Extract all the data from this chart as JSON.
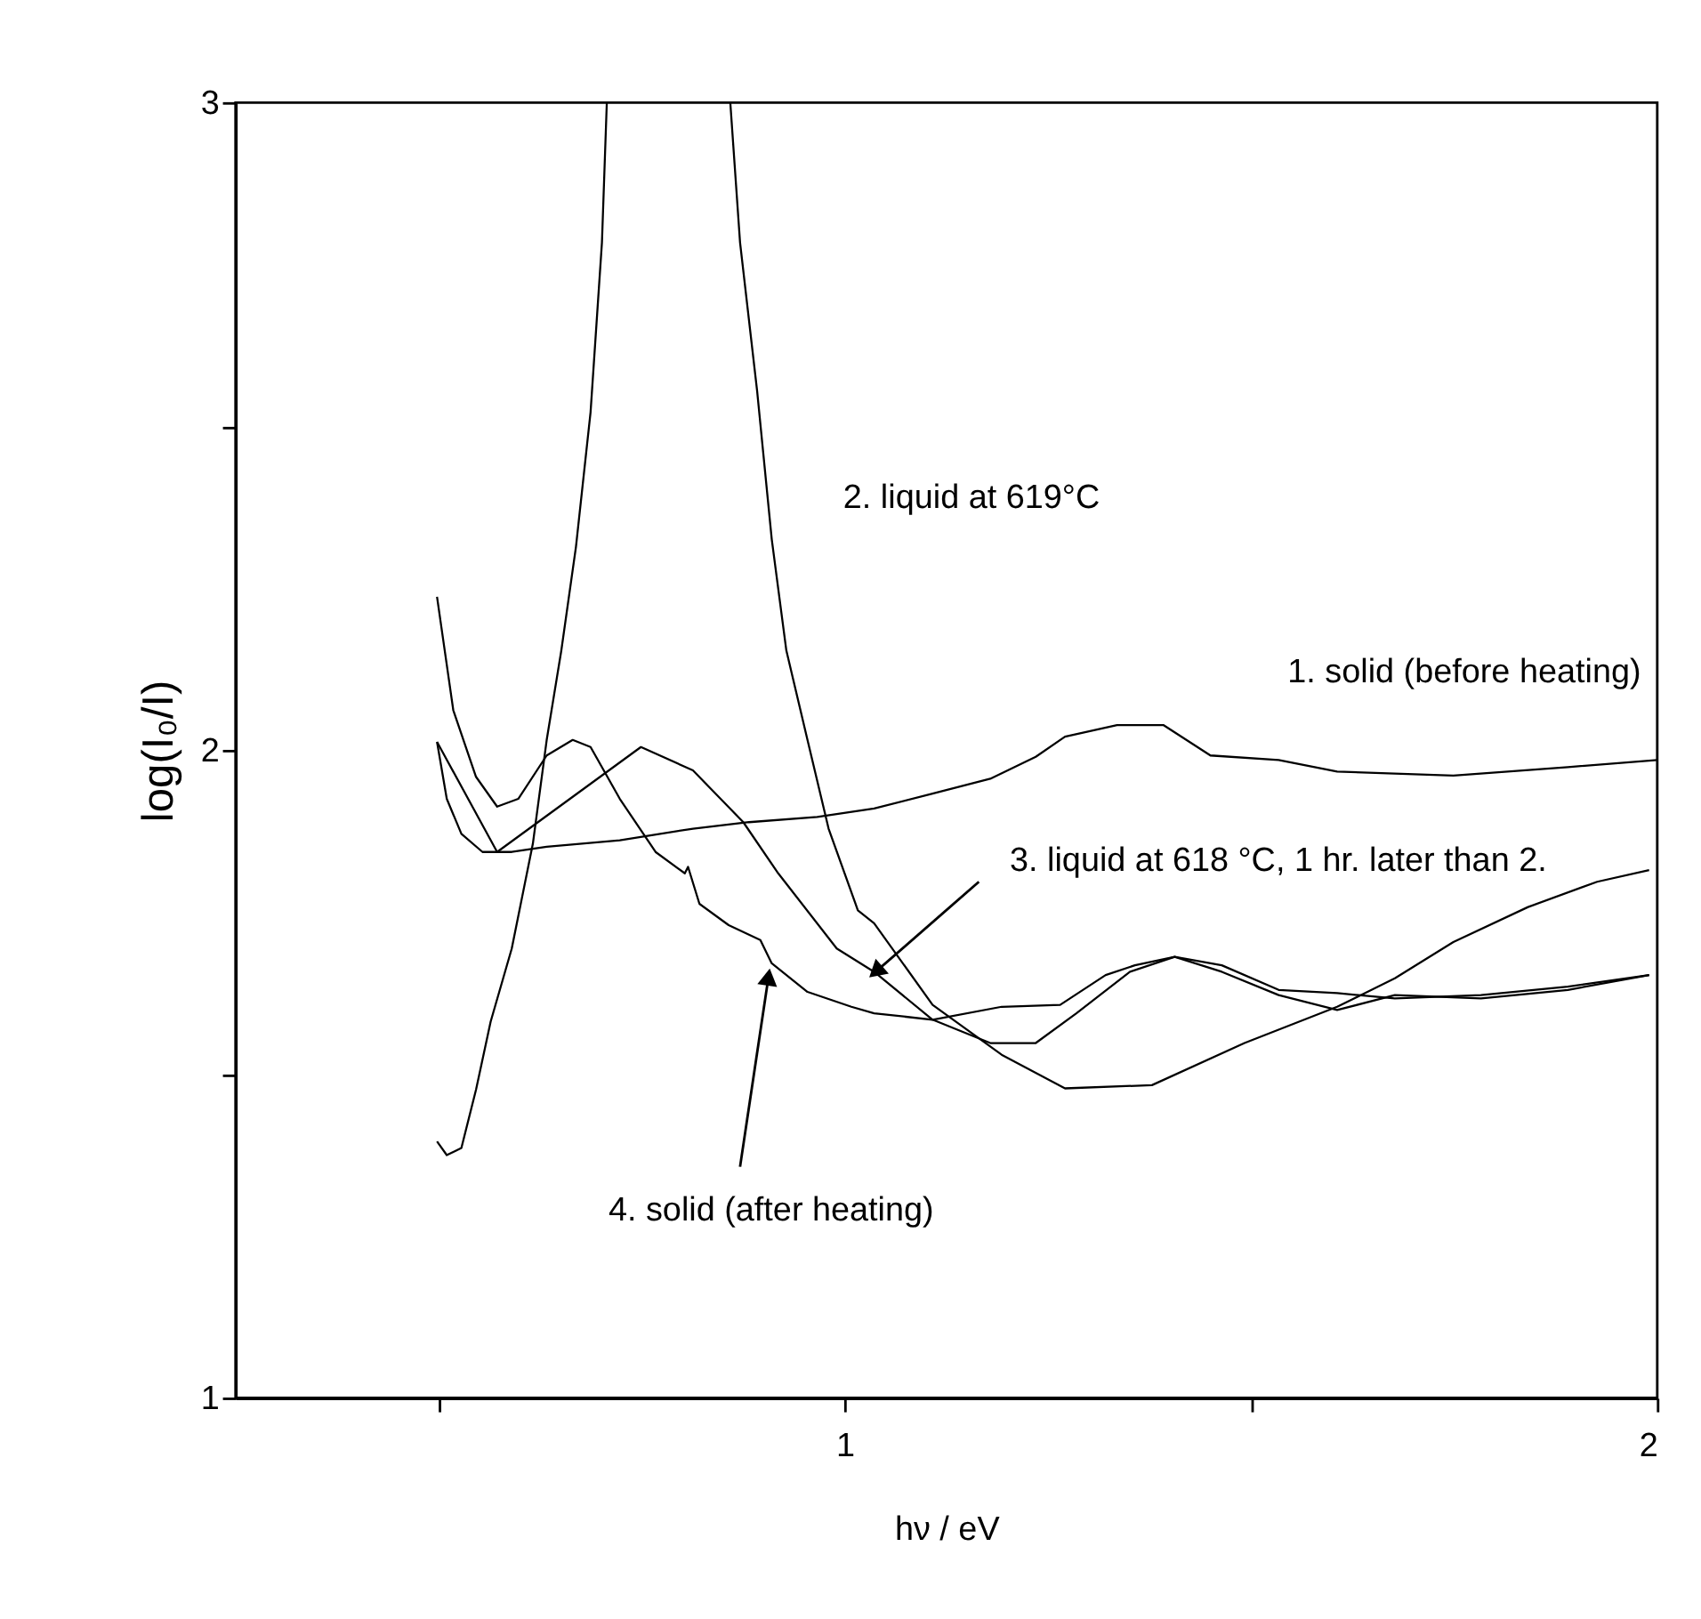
{
  "chart_data": {
    "type": "line",
    "xlabel": "hν / eV",
    "ylabel": "log(I₀/I)",
    "xlim": [
      0.25,
      2.0
    ],
    "ylim": [
      1,
      3
    ],
    "xticks": [
      {
        "value": 0.5,
        "label": null
      },
      1,
      {
        "value": 1.5,
        "label": null
      },
      2
    ],
    "yticks": [
      1,
      {
        "value": 1.5,
        "label": null
      },
      2,
      {
        "value": 2.5,
        "label": null
      },
      3
    ],
    "grid": false,
    "marker": "none",
    "line_style": "solid",
    "series": [
      {
        "name": "1. solid (before heating)",
        "color": "#000000",
        "x": [
          0.498,
          0.51,
          0.528,
          0.554,
          0.59,
          0.633,
          0.723,
          0.813,
          0.882,
          0.966,
          1.036,
          1.108,
          1.179,
          1.235,
          1.271,
          1.335,
          1.392,
          1.45,
          1.534,
          1.606,
          1.749,
          1.89,
          2.0
        ],
        "values": [
          2.013,
          1.925,
          1.871,
          1.843,
          1.843,
          1.851,
          1.861,
          1.879,
          1.889,
          1.897,
          1.91,
          1.933,
          1.956,
          1.99,
          2.021,
          2.039,
          2.039,
          1.992,
          1.985,
          1.967,
          1.961,
          1.974,
          1.985
        ]
      },
      {
        "name": "2. liquid at 619°C",
        "color": "#000000",
        "x": [
          0.498,
          0.51,
          0.528,
          0.546,
          0.564,
          0.59,
          0.616,
          0.633,
          0.651,
          0.669,
          0.687,
          0.701,
          0.707,
          0.78,
          0.859,
          0.871,
          0.892,
          0.91,
          0.928,
          0.954,
          0.98,
          1.016,
          1.036,
          1.108,
          1.193,
          1.271,
          1.378,
          1.492,
          1.606,
          1.677,
          1.749,
          1.841,
          1.926,
          1.99
        ],
        "values": [
          1.396,
          1.375,
          1.386,
          1.476,
          1.581,
          1.694,
          1.856,
          2.016,
          2.154,
          2.314,
          2.522,
          2.784,
          3.0,
          null,
          3.0,
          2.784,
          2.555,
          2.326,
          2.154,
          2.016,
          1.879,
          1.753,
          1.733,
          1.607,
          1.53,
          1.478,
          1.483,
          1.548,
          1.604,
          1.648,
          1.704,
          1.758,
          1.797,
          1.815
        ]
      },
      {
        "name": "3. liquid at 618 °C, 1 hr. later than 2.",
        "color": "#000000",
        "x": [
          0.498,
          0.572,
          0.749,
          0.813,
          0.875,
          0.918,
          0.99,
          1.036,
          1.108,
          1.179,
          1.235,
          1.285,
          1.351,
          1.406,
          1.464,
          1.534,
          1.606,
          1.677,
          1.783,
          1.89,
          1.99
        ],
        "values": [
          2.013,
          1.843,
          2.005,
          1.969,
          1.889,
          1.81,
          1.694,
          1.658,
          1.584,
          1.548,
          1.548,
          1.594,
          1.658,
          1.681,
          1.658,
          1.622,
          1.599,
          1.622,
          1.617,
          1.63,
          1.653
        ]
      },
      {
        "name": "4. solid (after heating)",
        "color": "#000000",
        "x": [
          0.498,
          0.518,
          0.546,
          0.572,
          0.598,
          0.633,
          0.665,
          0.687,
          0.723,
          0.767,
          0.803,
          0.807,
          0.821,
          0.857,
          0.896,
          0.91,
          0.954,
          1.008,
          1.036,
          1.108,
          1.193,
          1.265,
          1.293,
          1.321,
          1.357,
          1.406,
          1.464,
          1.534,
          1.606,
          1.677,
          1.783,
          1.89,
          1.99
        ],
        "values": [
          2.237,
          2.062,
          1.959,
          1.913,
          1.925,
          1.992,
          2.016,
          2.005,
          1.925,
          1.843,
          1.81,
          1.82,
          1.763,
          1.73,
          1.707,
          1.671,
          1.627,
          1.604,
          1.594,
          1.584,
          1.604,
          1.607,
          1.63,
          1.653,
          1.668,
          1.681,
          1.668,
          1.63,
          1.625,
          1.617,
          1.622,
          1.635,
          1.653
        ]
      }
    ]
  }
}
